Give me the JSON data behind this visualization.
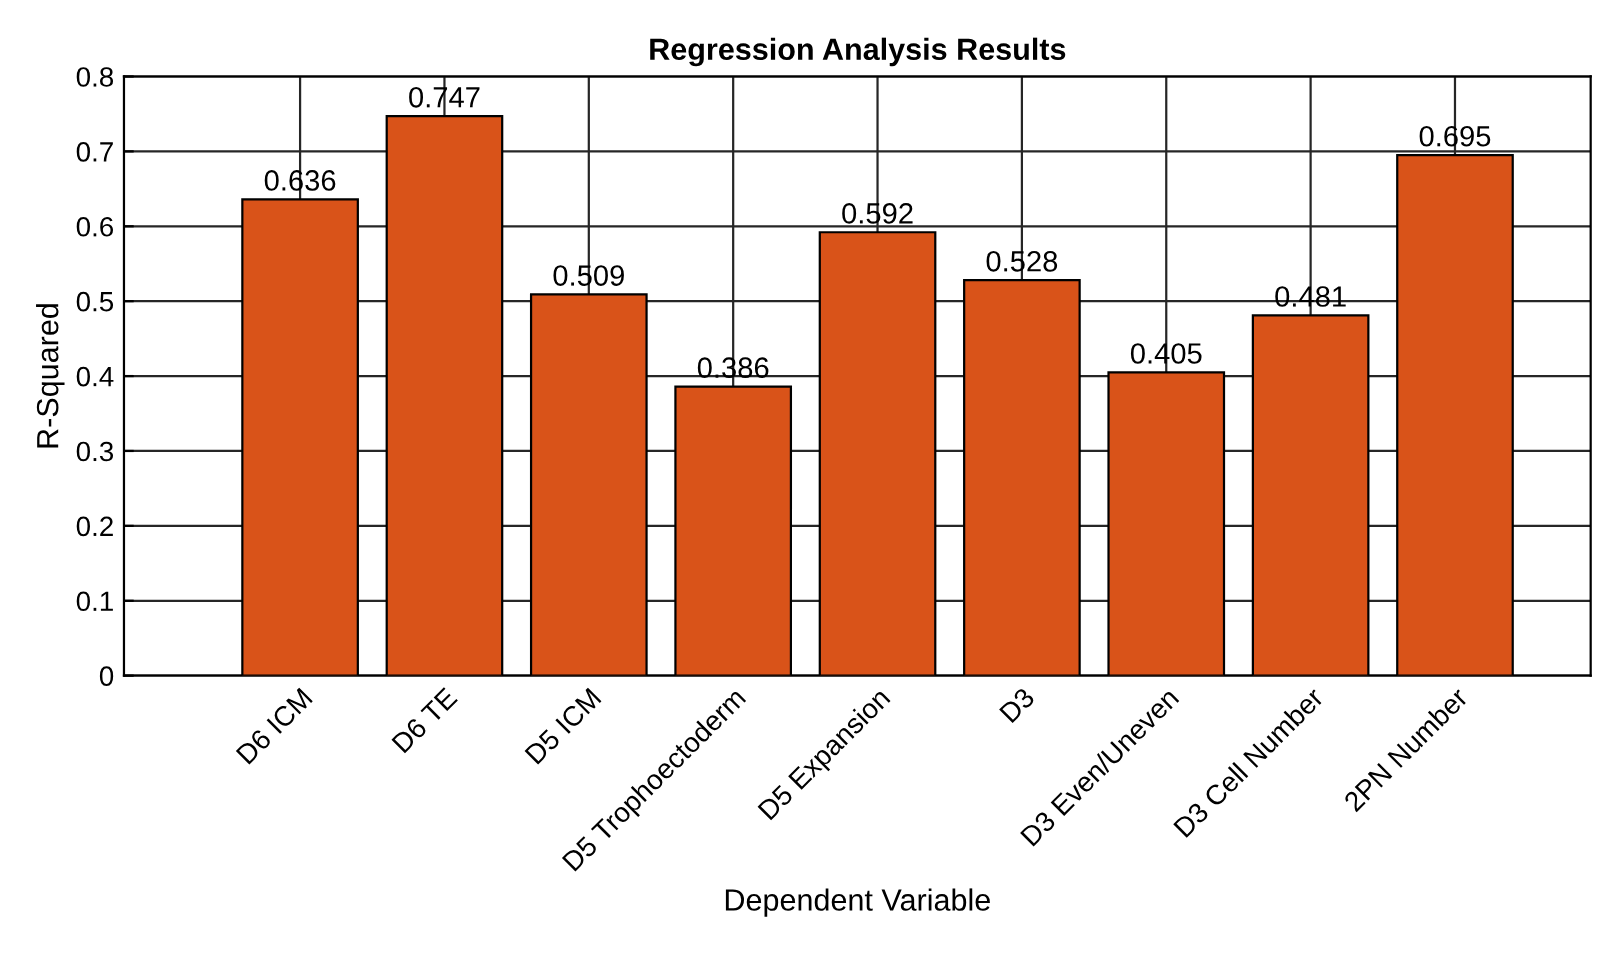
{
  "chart_data": {
    "type": "bar",
    "title": "Regression Analysis Results",
    "xlabel": "Dependent Variable",
    "ylabel": "R-Squared",
    "categories": [
      "D6 ICM",
      "D6 TE",
      "D5 ICM",
      "D5 Trophoectoderm",
      "D5 Expansion",
      "D3",
      "D3 Even/Uneven",
      "D3 Cell Number",
      "2PN Number"
    ],
    "values": [
      0.636,
      0.747,
      0.509,
      0.386,
      0.592,
      0.528,
      0.405,
      0.481,
      0.695
    ],
    "color": "#d95319",
    "ylim": [
      0,
      0.8
    ],
    "yticks": [
      0,
      0.1,
      0.2,
      0.3,
      0.4,
      0.5,
      0.6,
      0.7,
      0.8
    ],
    "grid": true,
    "data_labels": true
  }
}
